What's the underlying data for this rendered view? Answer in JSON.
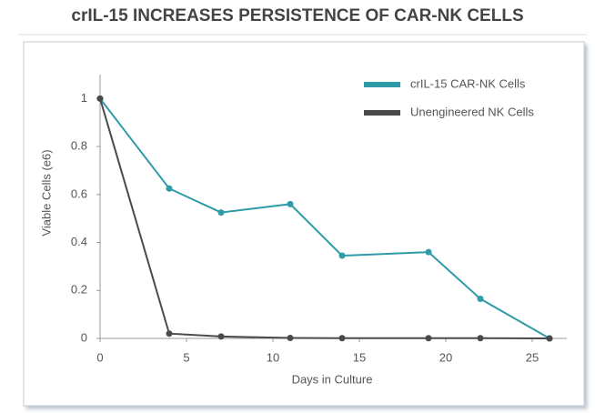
{
  "chart_data": {
    "type": "line",
    "title": "crIL-15 INCREASES PERSISTENCE OF CAR-NK CELLS",
    "x_label": "Days in Culture",
    "y_label": "Viable Cells (e6)",
    "x": [
      0,
      4,
      7,
      11,
      14,
      19,
      22,
      26
    ],
    "series": [
      {
        "name": "crIL-15 CAR-NK Cells",
        "color": "#2e9ca8",
        "values": [
          1,
          0.625,
          0.525,
          0.56,
          0.345,
          0.36,
          0.165,
          0
        ]
      },
      {
        "name": "Unengineered NK Cells",
        "color": "#4a4a4a",
        "values": [
          1,
          0.02,
          0.008,
          0.002,
          0.001,
          0.001,
          0.001,
          0
        ]
      }
    ],
    "xlim": [
      0,
      27
    ],
    "xticks": [
      0,
      5,
      10,
      15,
      20,
      25
    ],
    "ylim": [
      0,
      1.1
    ],
    "yticks": [
      0,
      0.2,
      0.4,
      0.6,
      0.8,
      1
    ],
    "legend": "upper right"
  }
}
